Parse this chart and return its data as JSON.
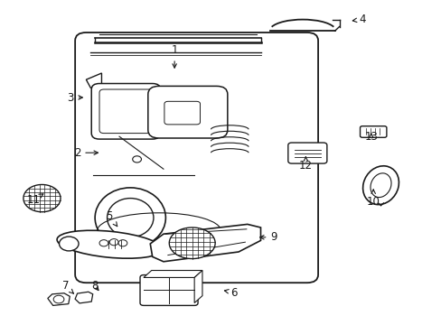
{
  "background_color": "#ffffff",
  "line_color": "#1a1a1a",
  "fig_width": 4.89,
  "fig_height": 3.6,
  "dpi": 100,
  "label_positions": {
    "1": [
      0.395,
      0.845,
      0.395,
      0.78
    ],
    "2": [
      0.175,
      0.53,
      0.23,
      0.53
    ],
    "3": [
      0.16,
      0.7,
      0.195,
      0.7
    ],
    "4": [
      0.82,
      0.94,
      0.79,
      0.935
    ],
    "5": [
      0.248,
      0.335,
      0.27,
      0.295
    ],
    "6": [
      0.53,
      0.1,
      0.5,
      0.108
    ],
    "7": [
      0.148,
      0.12,
      0.168,
      0.095
    ],
    "8": [
      0.215,
      0.12,
      0.228,
      0.098
    ],
    "9": [
      0.62,
      0.27,
      0.58,
      0.27
    ],
    "10": [
      0.845,
      0.38,
      0.845,
      0.42
    ],
    "11": [
      0.075,
      0.385,
      0.1,
      0.405
    ],
    "12": [
      0.692,
      0.49,
      0.692,
      0.52
    ],
    "13": [
      0.84,
      0.58,
      0.84,
      0.6
    ]
  }
}
